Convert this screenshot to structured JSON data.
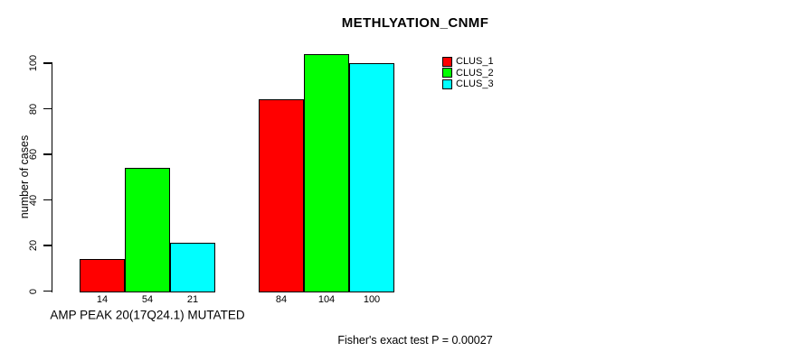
{
  "chart_data": {
    "type": "bar",
    "title": "METHLYATION_CNMF",
    "ylabel": "number of cases",
    "xlabel": "AMP PEAK 20(17Q24.1) MUTATED",
    "footer": "Fisher's exact test P = 0.00027",
    "ylim": [
      0,
      100
    ],
    "yticks": [
      0,
      20,
      40,
      60,
      80,
      100
    ],
    "grid": false,
    "legend_position": "top-right",
    "bar_value_labels_shown": true,
    "series": [
      {
        "name": "CLUS_1",
        "color": "#ff0000",
        "values": [
          14,
          84
        ]
      },
      {
        "name": "CLUS_2",
        "color": "#00ff00",
        "values": [
          54,
          104
        ]
      },
      {
        "name": "CLUS_3",
        "color": "#00ffff",
        "values": [
          21,
          100
        ]
      }
    ]
  }
}
